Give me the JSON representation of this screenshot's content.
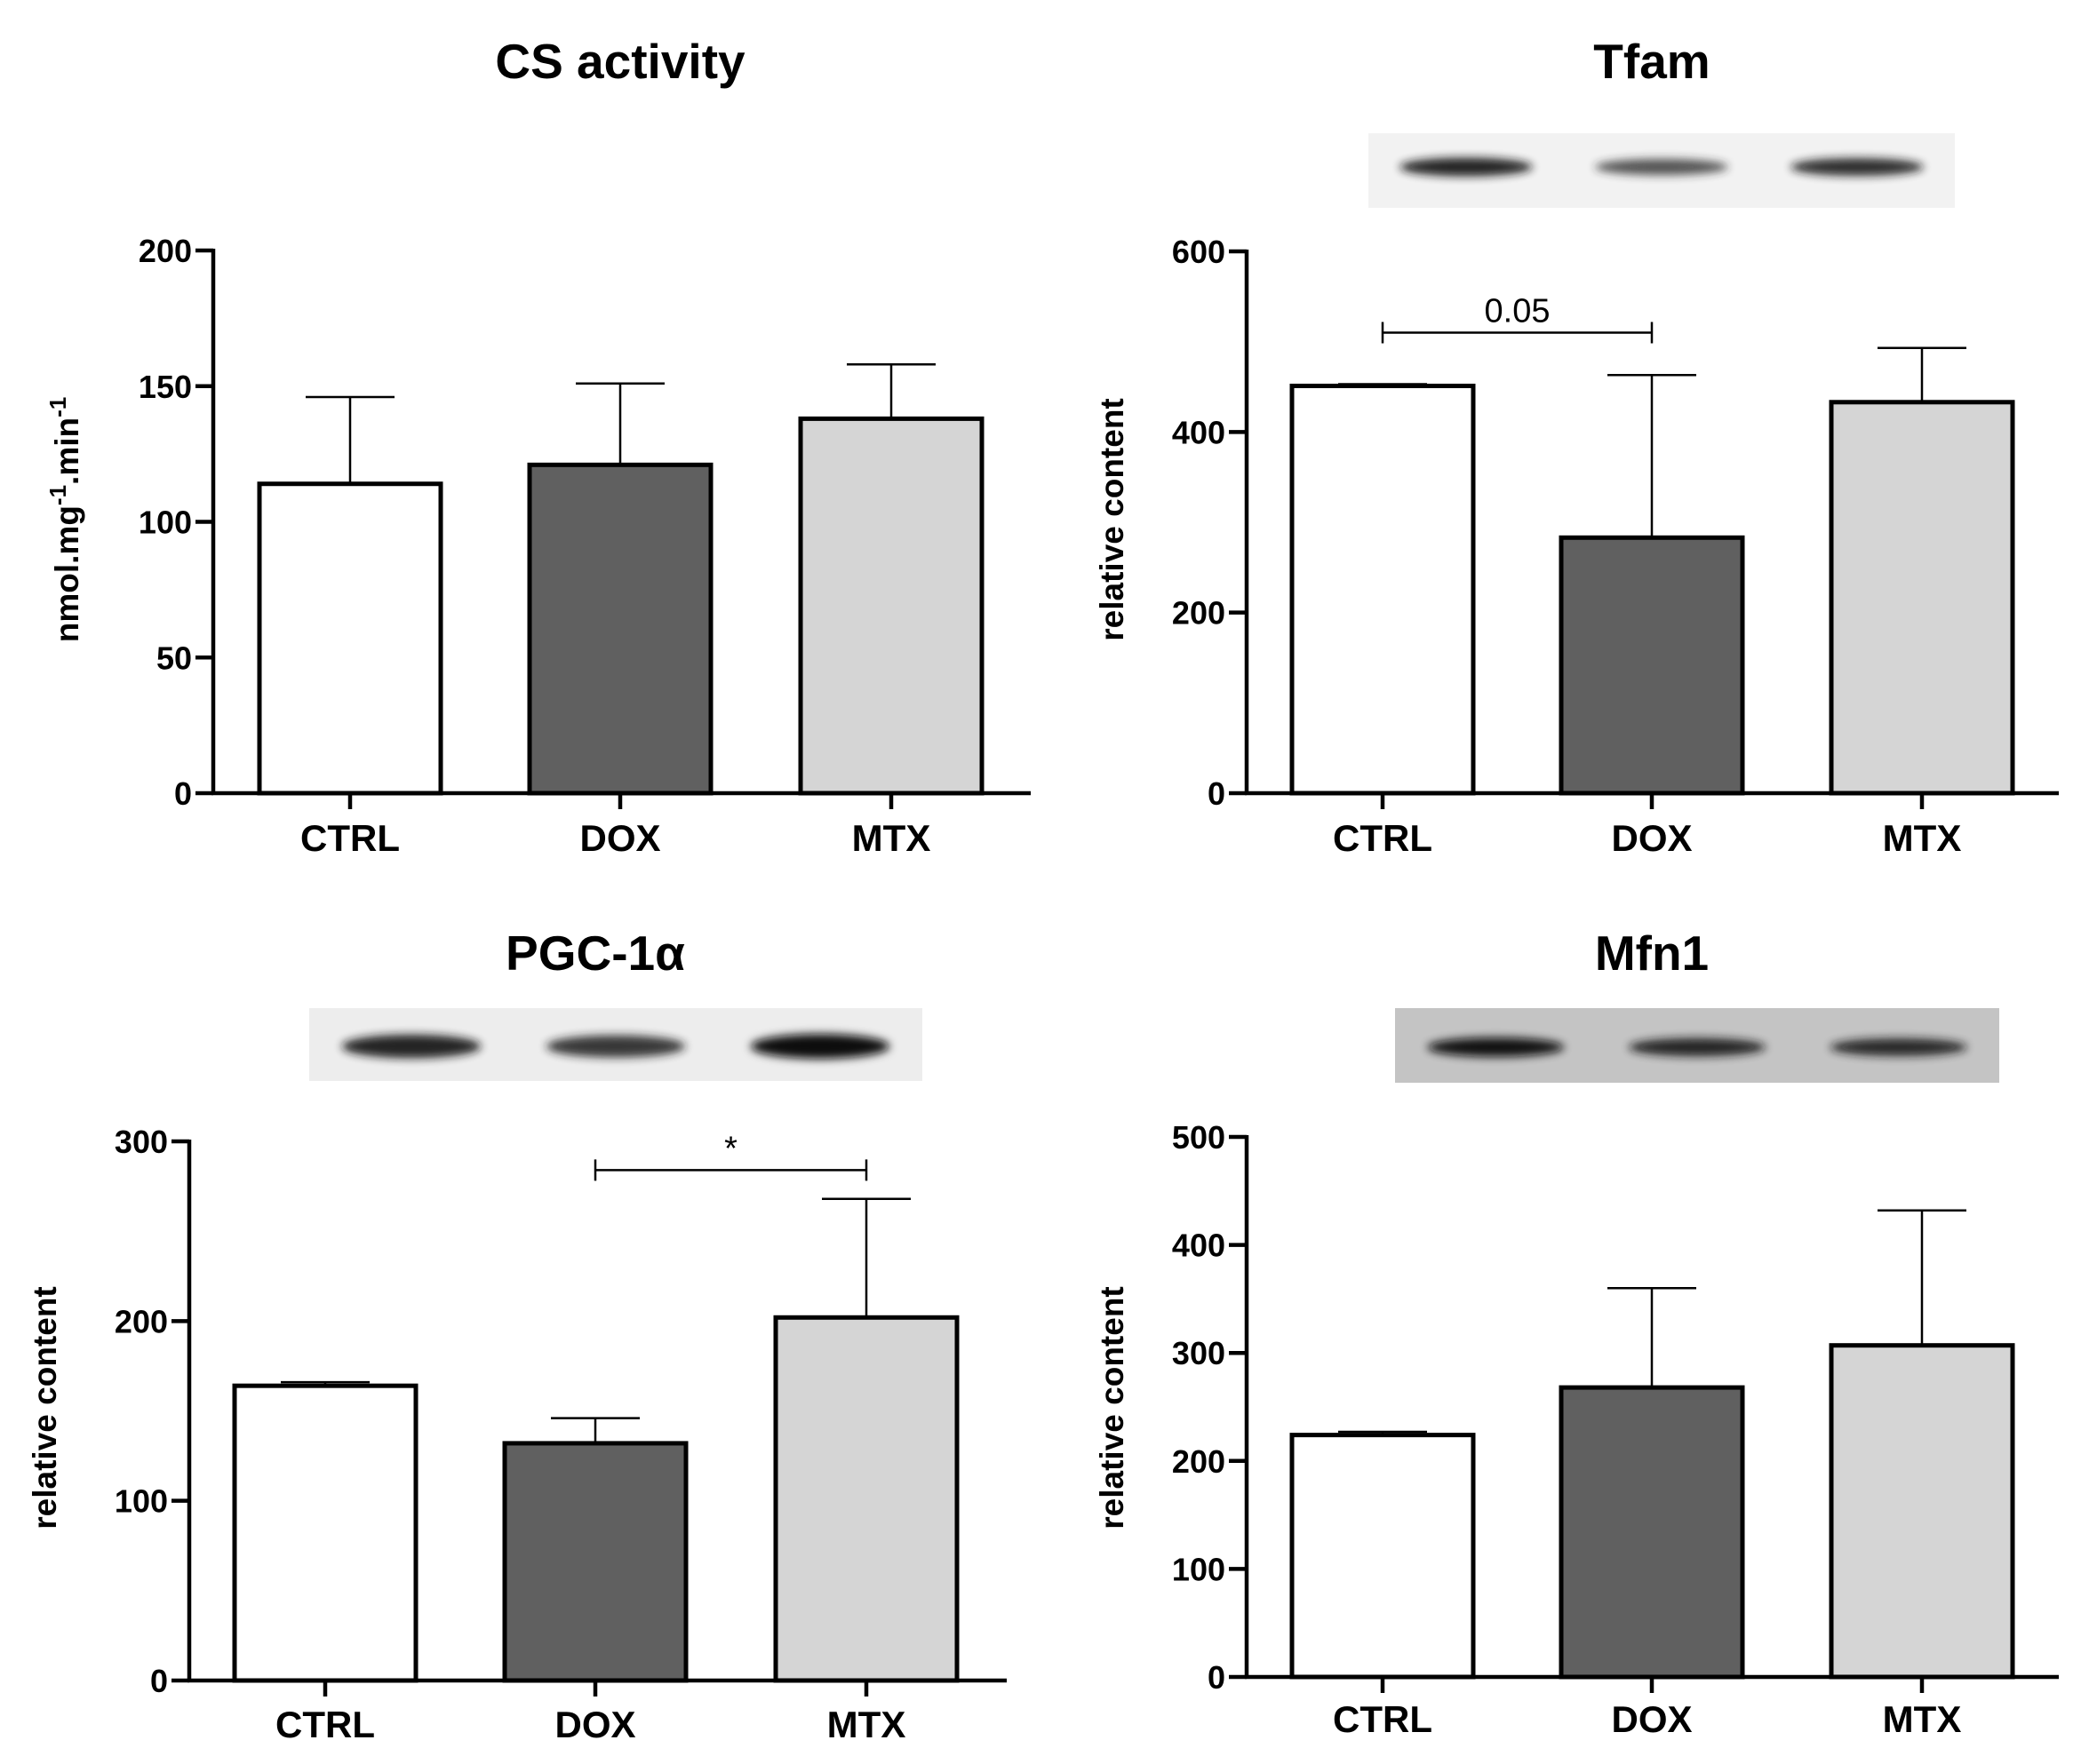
{
  "figure": {
    "panel_count": 4
  },
  "colors": {
    "CTRL": "#ffffff",
    "DOX": "#606060",
    "MTX": "#d5d5d5",
    "axis": "#000000"
  },
  "chart_data": [
    {
      "id": "cs",
      "type": "bar",
      "title": "CS activity",
      "ylabel_parts": [
        "nmol.mg",
        "-1",
        ".min",
        "-1"
      ],
      "xlabel": "",
      "categories": [
        "CTRL",
        "DOX",
        "MTX"
      ],
      "values": [
        114,
        121,
        138
      ],
      "errors": [
        32,
        30,
        20
      ],
      "ylim": [
        0,
        200
      ],
      "yticks": [
        0,
        50,
        100,
        150,
        200
      ],
      "ytick_labels": [
        "0",
        "50",
        "100",
        "150",
        "200"
      ],
      "annotations": [],
      "blot": null
    },
    {
      "id": "tfam",
      "type": "bar",
      "title": "Tfam",
      "ylabel_parts": [
        "relative content"
      ],
      "xlabel": "",
      "categories": [
        "CTRL",
        "DOX",
        "MTX"
      ],
      "values": [
        451,
        283,
        433
      ],
      "errors": [
        2,
        180,
        60
      ],
      "ylim": [
        0,
        600
      ],
      "yticks": [
        0,
        200,
        400,
        600
      ],
      "ytick_labels": [
        "0",
        "200",
        "400",
        "600"
      ],
      "annotations": [
        {
          "from": 0,
          "to": 1,
          "y": 510,
          "label": "0.05"
        }
      ],
      "blot": {
        "style": "tfam",
        "bands": [
          0.85,
          0.5,
          0.75
        ],
        "background": "#f2f2f2"
      }
    },
    {
      "id": "pgc",
      "type": "bar",
      "title": "PGC-1α",
      "ylabel_parts": [
        "relative content"
      ],
      "xlabel": "",
      "categories": [
        "CTRL",
        "DOX",
        "MTX"
      ],
      "values": [
        164,
        132,
        202
      ],
      "errors": [
        2,
        14,
        66
      ],
      "ylim": [
        0,
        300
      ],
      "yticks": [
        0,
        100,
        200,
        300
      ],
      "ytick_labels": [
        "0",
        "100",
        "200",
        "300"
      ],
      "annotations": [
        {
          "from": 1,
          "to": 2,
          "y": 284,
          "label": "*"
        }
      ],
      "blot": {
        "style": "pgc",
        "bands": [
          0.85,
          0.7,
          1.0
        ],
        "background": "#ededed"
      }
    },
    {
      "id": "mfn1",
      "type": "bar",
      "title": "Mfn1",
      "ylabel_parts": [
        "relative content"
      ],
      "xlabel": "",
      "categories": [
        "CTRL",
        "DOX",
        "MTX"
      ],
      "values": [
        224,
        268,
        307
      ],
      "errors": [
        3,
        92,
        125
      ],
      "ylim": [
        0,
        500
      ],
      "yticks": [
        0,
        100,
        200,
        300,
        400,
        500
      ],
      "ytick_labels": [
        "0",
        "100",
        "200",
        "300",
        "400",
        "500"
      ],
      "annotations": [],
      "blot": {
        "style": "mfn1",
        "bands": [
          0.95,
          0.8,
          0.75
        ],
        "background": "#c4c4c4"
      }
    }
  ]
}
